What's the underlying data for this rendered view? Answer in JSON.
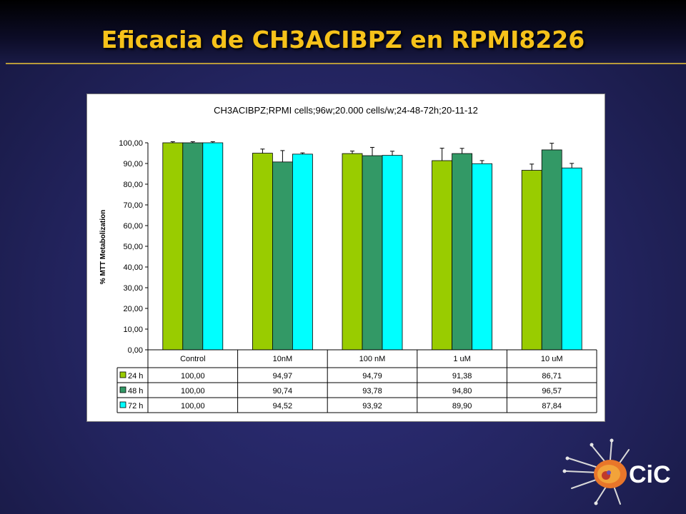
{
  "slide": {
    "title": "Eficacia de CH3ACIBPZ en RPMI8226"
  },
  "chart_data": {
    "type": "bar",
    "title": "CH3ACIBPZ;RPMI cells;96w;20.000 cells/w;24-48-72h;20-11-12",
    "ylabel": "% MTT Metabolization",
    "xlabel": "",
    "ylim": [
      0,
      100
    ],
    "yticks": [
      "0,00",
      "10,00",
      "20,00",
      "30,00",
      "40,00",
      "50,00",
      "60,00",
      "70,00",
      "80,00",
      "90,00",
      "100,00"
    ],
    "grid": false,
    "legend": "data-table-left",
    "categories": [
      "Control",
      "10nM",
      "100 nM",
      "1 uM",
      "10 uM"
    ],
    "series": [
      {
        "name": "24 h",
        "color": "#99cc00",
        "values": [
          100.0,
          94.97,
          94.79,
          91.38,
          86.71
        ],
        "labels": [
          "100,00",
          "94,97",
          "94,79",
          "91,38",
          "86,71"
        ],
        "errors": [
          0.5,
          2.0,
          1.2,
          6.0,
          3.0
        ]
      },
      {
        "name": "48 h",
        "color": "#339966",
        "values": [
          100.0,
          90.74,
          93.78,
          94.8,
          96.57
        ],
        "labels": [
          "100,00",
          "90,74",
          "93,78",
          "94,80",
          "96,57"
        ],
        "errors": [
          0.5,
          5.5,
          4.0,
          2.5,
          3.2
        ]
      },
      {
        "name": "72 h",
        "color": "#00ffff",
        "values": [
          100.0,
          94.52,
          93.92,
          89.9,
          87.84
        ],
        "labels": [
          "100,00",
          "94,52",
          "93,92",
          "89,90",
          "87,84"
        ],
        "errors": [
          0.5,
          0.6,
          2.0,
          1.5,
          2.2
        ]
      }
    ]
  },
  "logo": {
    "text": "CiC",
    "icon": "cell-logo-icon"
  }
}
